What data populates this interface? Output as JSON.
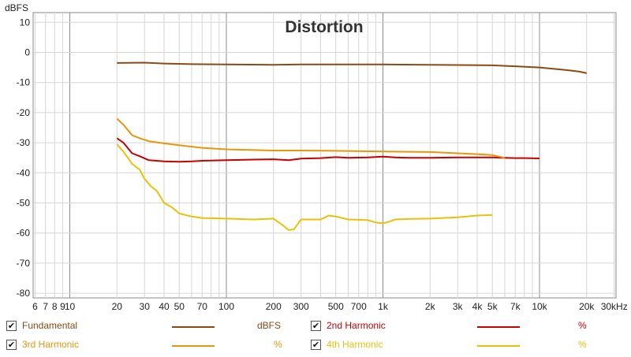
{
  "chart_data": {
    "type": "line",
    "title": "Distortion",
    "ylabel": "dBFS",
    "xlabel": "",
    "xscale": "log",
    "xlim": [
      5,
      30000
    ],
    "ylim": [
      -81,
      12
    ],
    "grid": true,
    "y_ticks": [
      10,
      0,
      -10,
      -20,
      -30,
      -40,
      -50,
      -60,
      -70,
      -80
    ],
    "x_ticks": [
      {
        "v": 6,
        "label": "6"
      },
      {
        "v": 7,
        "label": "7"
      },
      {
        "v": 8,
        "label": "8"
      },
      {
        "v": 9,
        "label": "9"
      },
      {
        "v": 10,
        "label": "10"
      },
      {
        "v": 20,
        "label": "20"
      },
      {
        "v": 30,
        "label": "30"
      },
      {
        "v": 40,
        "label": "40"
      },
      {
        "v": 50,
        "label": "50"
      },
      {
        "v": 70,
        "label": "70"
      },
      {
        "v": 100,
        "label": "100"
      },
      {
        "v": 200,
        "label": "200"
      },
      {
        "v": 300,
        "label": "300"
      },
      {
        "v": 500,
        "label": "500"
      },
      {
        "v": 700,
        "label": "700"
      },
      {
        "v": 1000,
        "label": "1k"
      },
      {
        "v": 2000,
        "label": "2k"
      },
      {
        "v": 3000,
        "label": "3k"
      },
      {
        "v": 4000,
        "label": "4k"
      },
      {
        "v": 5000,
        "label": "5k"
      },
      {
        "v": 7000,
        "label": "7k"
      },
      {
        "v": 10000,
        "label": "10k"
      },
      {
        "v": 20000,
        "label": "20k"
      },
      {
        "v": 30000,
        "label": "30kHz"
      }
    ],
    "series": [
      {
        "name": "Fundamental",
        "unit": "dBFS",
        "color": "#8b4a14",
        "x": [
          20,
          30,
          40,
          60,
          100,
          200,
          300,
          500,
          1000,
          2000,
          3000,
          5000,
          7000,
          10000,
          12000,
          15000,
          18000,
          20000
        ],
        "y": [
          -3.5,
          -3.4,
          -3.7,
          -3.9,
          -4.0,
          -4.1,
          -4.0,
          -4.0,
          -4.0,
          -4.1,
          -4.2,
          -4.3,
          -4.6,
          -5.0,
          -5.4,
          -5.9,
          -6.4,
          -6.9
        ]
      },
      {
        "name": "2nd Harmonic",
        "unit": "%",
        "color": "#c80000",
        "x": [
          20,
          22,
          25,
          28,
          32,
          40,
          50,
          60,
          70,
          100,
          150,
          200,
          250,
          300,
          400,
          500,
          600,
          800,
          1000,
          1200,
          1500,
          2000,
          3000,
          4000,
          5000,
          6000,
          7000,
          8000,
          10000
        ],
        "y": [
          -28.5,
          -30,
          -33.5,
          -34.5,
          -35.8,
          -36.2,
          -36.3,
          -36.2,
          -36.0,
          -35.8,
          -35.6,
          -35.5,
          -35.8,
          -35.3,
          -35.1,
          -34.8,
          -35.0,
          -34.9,
          -34.6,
          -34.9,
          -35.0,
          -35.0,
          -34.9,
          -34.9,
          -34.9,
          -35.0,
          -35.1,
          -35.1,
          -35.2
        ]
      },
      {
        "name": "3rd Harmonic",
        "unit": "%",
        "color": "#e8960a",
        "x": [
          20,
          22,
          25,
          28,
          32,
          40,
          50,
          70,
          100,
          200,
          300,
          500,
          1000,
          2000,
          3000,
          4000,
          5000,
          6000
        ],
        "y": [
          -22,
          -24,
          -27.5,
          -28.5,
          -29.5,
          -30.2,
          -30.8,
          -31.7,
          -32.2,
          -32.6,
          -32.6,
          -32.7,
          -32.9,
          -33.1,
          -33.5,
          -33.8,
          -34.1,
          -35.0
        ]
      },
      {
        "name": "4th Harmonic",
        "unit": "%",
        "color": "#e8c20a",
        "x": [
          20,
          22,
          25,
          28,
          30,
          33,
          36,
          40,
          45,
          50,
          60,
          70,
          100,
          150,
          200,
          230,
          250,
          270,
          300,
          350,
          400,
          450,
          500,
          600,
          700,
          800,
          900,
          1000,
          1100,
          1200,
          1500,
          2000,
          3000,
          4000,
          5000
        ],
        "y": [
          -30.5,
          -33,
          -37,
          -39,
          -42,
          -44.5,
          -46,
          -50,
          -51.5,
          -53.5,
          -54.5,
          -55,
          -55.2,
          -55.5,
          -55.2,
          -57.5,
          -59,
          -58.8,
          -55.5,
          -55.5,
          -55.5,
          -54.2,
          -54.5,
          -55.5,
          -55.6,
          -55.7,
          -56.5,
          -56.8,
          -56.2,
          -55.5,
          -55.3,
          -55.2,
          -54.8,
          -54.2,
          -54.0
        ]
      }
    ]
  },
  "legend": {
    "items": [
      {
        "label": "Fundamental",
        "unit": "dBFS",
        "checked": "✔",
        "color": "#8b4a14"
      },
      {
        "label": "2nd Harmonic",
        "unit": "%",
        "checked": "✔",
        "color": "#c80000"
      },
      {
        "label": "3rd Harmonic",
        "unit": "%",
        "checked": "✔",
        "color": "#e8960a"
      },
      {
        "label": "4th Harmonic",
        "unit": "%",
        "checked": "✔",
        "color": "#e8c20a"
      }
    ]
  }
}
